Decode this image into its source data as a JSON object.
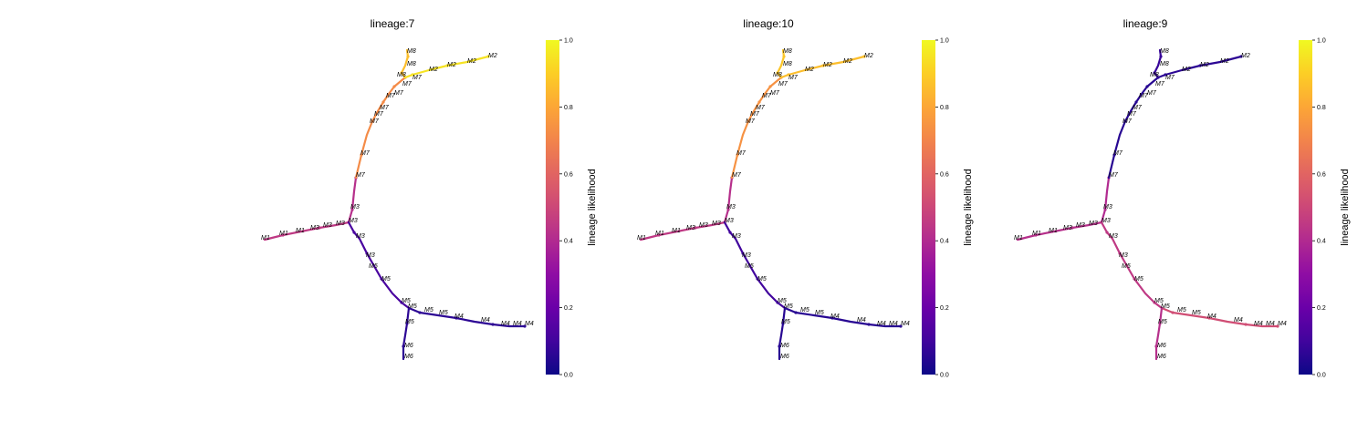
{
  "chart_data": [
    {
      "type": "trajectory-graph",
      "title": "lineage:7",
      "colorbar": {
        "label": "lineage likelihood",
        "ticks": [
          "0.0",
          "0.2",
          "0.4",
          "0.6",
          "0.8",
          "1.0"
        ],
        "range": [
          0,
          1
        ],
        "colormap": "plasma"
      },
      "branch_values": {
        "M1": 0.45,
        "M3a": 0.42,
        "M3b": 0.12,
        "M5": 0.06,
        "M4": 0.04,
        "M6": 0.06,
        "M7": 0.72,
        "M8": 0.86,
        "M2": 0.95
      }
    },
    {
      "type": "trajectory-graph",
      "title": "lineage:10",
      "colorbar": {
        "label": "lineage likelihood",
        "ticks": [
          "0.0",
          "0.2",
          "0.4",
          "0.6",
          "0.8",
          "1.0"
        ],
        "range": [
          0,
          1
        ],
        "colormap": "plasma"
      },
      "branch_values": {
        "M1": 0.45,
        "M3a": 0.42,
        "M3b": 0.1,
        "M5": 0.05,
        "M4": 0.03,
        "M6": 0.05,
        "M7": 0.74,
        "M8": 0.88,
        "M2": 0.86
      }
    },
    {
      "type": "trajectory-graph",
      "title": "lineage:9",
      "colorbar": {
        "label": "lineage likelihood",
        "ticks": [
          "0.0",
          "0.2",
          "0.4",
          "0.6",
          "0.8",
          "1.0"
        ],
        "range": [
          0,
          1
        ],
        "colormap": "plasma"
      },
      "branch_values": {
        "M1": 0.42,
        "M3a": 0.4,
        "M3b": 0.45,
        "M5": 0.52,
        "M4": 0.62,
        "M6": 0.42,
        "M7": 0.05,
        "M8": 0.08,
        "M2": 0.06
      }
    }
  ],
  "node_labels": {
    "M1": "M1",
    "M2": "M2",
    "M3": "M3",
    "M4": "M4",
    "M5": "M5",
    "M6": "M6",
    "M7": "M7",
    "M8": "M8"
  }
}
